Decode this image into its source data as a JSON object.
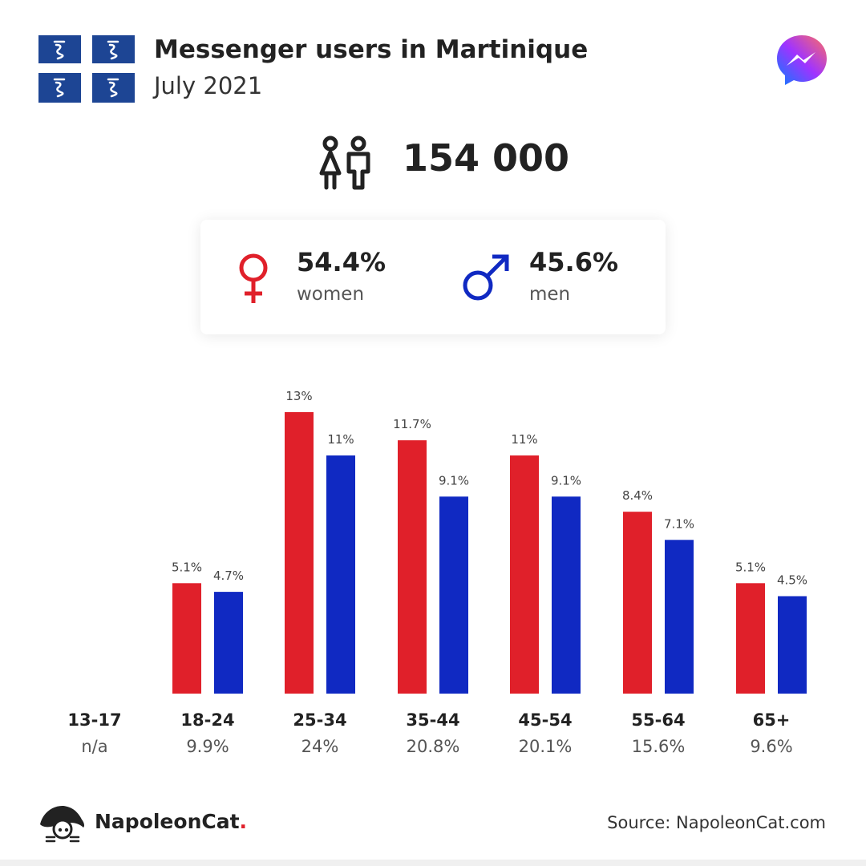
{
  "header": {
    "title": "Messenger users in Martinique",
    "subtitle": "July 2021"
  },
  "total": {
    "value": "154 000"
  },
  "gender": {
    "women": {
      "pct": "54.4%",
      "label": "women",
      "color": "#e0202a"
    },
    "men": {
      "pct": "45.6%",
      "label": "men",
      "color": "#1029c2"
    }
  },
  "chart_data": {
    "type": "bar",
    "categories": [
      "13-17",
      "18-24",
      "25-34",
      "35-44",
      "45-54",
      "55-64",
      "65+"
    ],
    "category_totals": [
      "n/a",
      "9.9%",
      "24%",
      "20.8%",
      "20.1%",
      "15.6%",
      "9.6%"
    ],
    "series": [
      {
        "name": "women",
        "color": "#e0202a",
        "values": [
          null,
          5.1,
          13,
          11.7,
          11,
          8.4,
          5.1
        ],
        "labels": [
          "",
          "5.1%",
          "13%",
          "11.7%",
          "11%",
          "8.4%",
          "5.1%"
        ]
      },
      {
        "name": "men",
        "color": "#1029c2",
        "values": [
          null,
          4.7,
          11,
          9.1,
          9.1,
          7.1,
          4.5
        ],
        "labels": [
          "",
          "4.7%",
          "11%",
          "9.1%",
          "9.1%",
          "7.1%",
          "4.5%"
        ]
      }
    ],
    "ylim": [
      0,
      13
    ],
    "grid": false,
    "legend": "none"
  },
  "footer": {
    "brand": "NapoleonCat",
    "brand_dot": ".",
    "source": "Source: NapoleonCat.com"
  },
  "icons": {
    "flag": "martinique-flag-icon",
    "messenger": "messenger-logo-icon",
    "users": "users-icon",
    "female": "female-symbol-icon",
    "male": "male-symbol-icon",
    "brand": "napoleoncat-logo-icon"
  }
}
